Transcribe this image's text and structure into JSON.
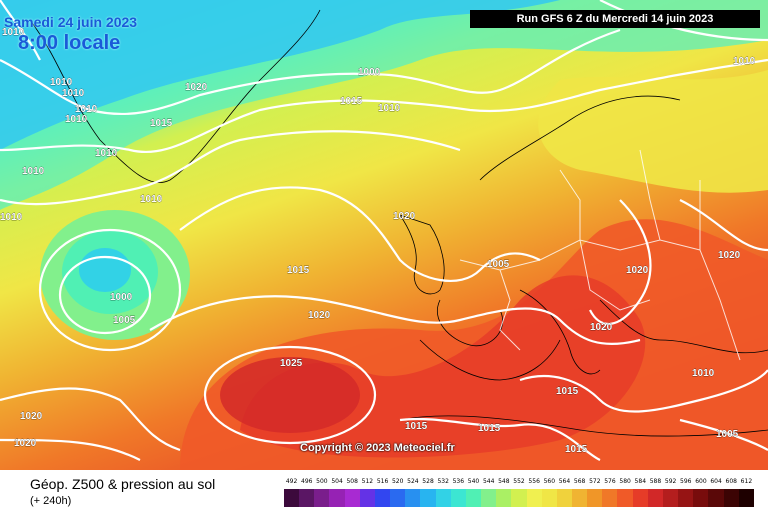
{
  "header": {
    "date_line": "Samedi 24 juin 2023",
    "time_line": "8:00 locale",
    "run_info": "Run GFS 6 Z du Mercredi 14 juin 2023"
  },
  "map": {
    "copyright": "Copyright © 2023 Meteociel.fr",
    "isobar_labels": [
      "1010",
      "1010",
      "1010",
      "1010",
      "1010",
      "1010",
      "1020",
      "1015",
      "1010",
      "1010",
      "1010",
      "1000",
      "1005",
      "1010",
      "1010",
      "1020",
      "1015",
      "1015",
      "1000",
      "1005",
      "1020",
      "1020",
      "1025",
      "1020",
      "1015",
      "1015",
      "1015",
      "1015",
      "1020",
      "1020",
      "1010",
      "1005",
      "1020"
    ]
  },
  "footer": {
    "title": "Géop. Z500 & pression au sol",
    "subtitle": "(+ 240h)",
    "scale_values": [
      "492",
      "496",
      "500",
      "504",
      "508",
      "512",
      "516",
      "520",
      "524",
      "528",
      "532",
      "536",
      "540",
      "544",
      "548",
      "552",
      "556",
      "560",
      "564",
      "568",
      "572",
      "576",
      "580",
      "584",
      "588",
      "592",
      "596",
      "600",
      "604",
      "608",
      "612"
    ],
    "scale_colors": [
      "#3c0a3c",
      "#5a1664",
      "#7a1e8c",
      "#9622b4",
      "#a82ad2",
      "#6432e6",
      "#3246f0",
      "#2a6af0",
      "#2890f0",
      "#28b4f0",
      "#32d2e6",
      "#3ce6d2",
      "#50f0b4",
      "#82f08c",
      "#aaf064",
      "#d2f050",
      "#f0f050",
      "#f0e646",
      "#f0d23c",
      "#f0b432",
      "#f09628",
      "#f07828",
      "#f05a28",
      "#e63c28",
      "#d22828",
      "#b41e1e",
      "#961414",
      "#780c0c",
      "#5a0808",
      "#3c0404",
      "#1e0000"
    ]
  }
}
